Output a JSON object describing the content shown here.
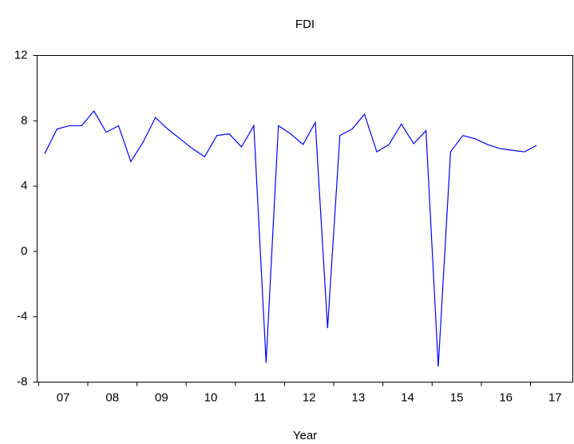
{
  "chart_data": {
    "type": "line",
    "title": "FDI",
    "x_label": "Year",
    "x": [
      2007.125,
      2007.375,
      2007.625,
      2007.875,
      2008.125,
      2008.375,
      2008.625,
      2008.875,
      2009.125,
      2009.375,
      2009.625,
      2009.875,
      2010.125,
      2010.375,
      2010.625,
      2010.875,
      2011.125,
      2011.375,
      2011.625,
      2011.875,
      2012.125,
      2012.375,
      2012.625,
      2012.875,
      2013.125,
      2013.375,
      2013.625,
      2013.875,
      2014.125,
      2014.375,
      2014.625,
      2014.875,
      2015.125,
      2015.375,
      2015.625,
      2015.875,
      2016.125,
      2016.375,
      2016.625,
      2016.875,
      2017.125
    ],
    "series": [
      {
        "name": "FDI",
        "color": "#0000ff",
        "values": [
          6.0,
          7.5,
          7.7,
          7.7,
          8.6,
          7.3,
          7.7,
          5.5,
          6.7,
          8.2,
          7.5,
          6.9,
          6.3,
          5.8,
          7.1,
          7.2,
          6.4,
          7.7,
          -6.8,
          7.7,
          7.2,
          6.55,
          7.9,
          -4.7,
          7.1,
          7.5,
          8.4,
          6.1,
          6.55,
          7.8,
          6.6,
          7.4,
          -7.05,
          6.1,
          7.1,
          6.9,
          6.55,
          6.3,
          6.2,
          6.1,
          6.5
        ]
      }
    ],
    "xlim": [
      2006.97,
      2017.86
    ],
    "xticks": [
      {
        "value": 2007.5,
        "label": "07"
      },
      {
        "value": 2008.5,
        "label": "08"
      },
      {
        "value": 2009.5,
        "label": "09"
      },
      {
        "value": 2010.5,
        "label": "10"
      },
      {
        "value": 2011.5,
        "label": "11"
      },
      {
        "value": 2012.5,
        "label": "12"
      },
      {
        "value": 2013.5,
        "label": "13"
      },
      {
        "value": 2014.5,
        "label": "14"
      },
      {
        "value": 2015.5,
        "label": "15"
      },
      {
        "value": 2016.5,
        "label": "16"
      },
      {
        "value": 2017.5,
        "label": "17"
      }
    ],
    "xtick_marks": [
      2007,
      2008,
      2009,
      2010,
      2011,
      2012,
      2013,
      2014,
      2015,
      2016,
      2017
    ],
    "ylim": [
      -8,
      12
    ],
    "yticks": [
      -8,
      -4,
      0,
      4,
      8,
      12
    ],
    "grid": false
  }
}
